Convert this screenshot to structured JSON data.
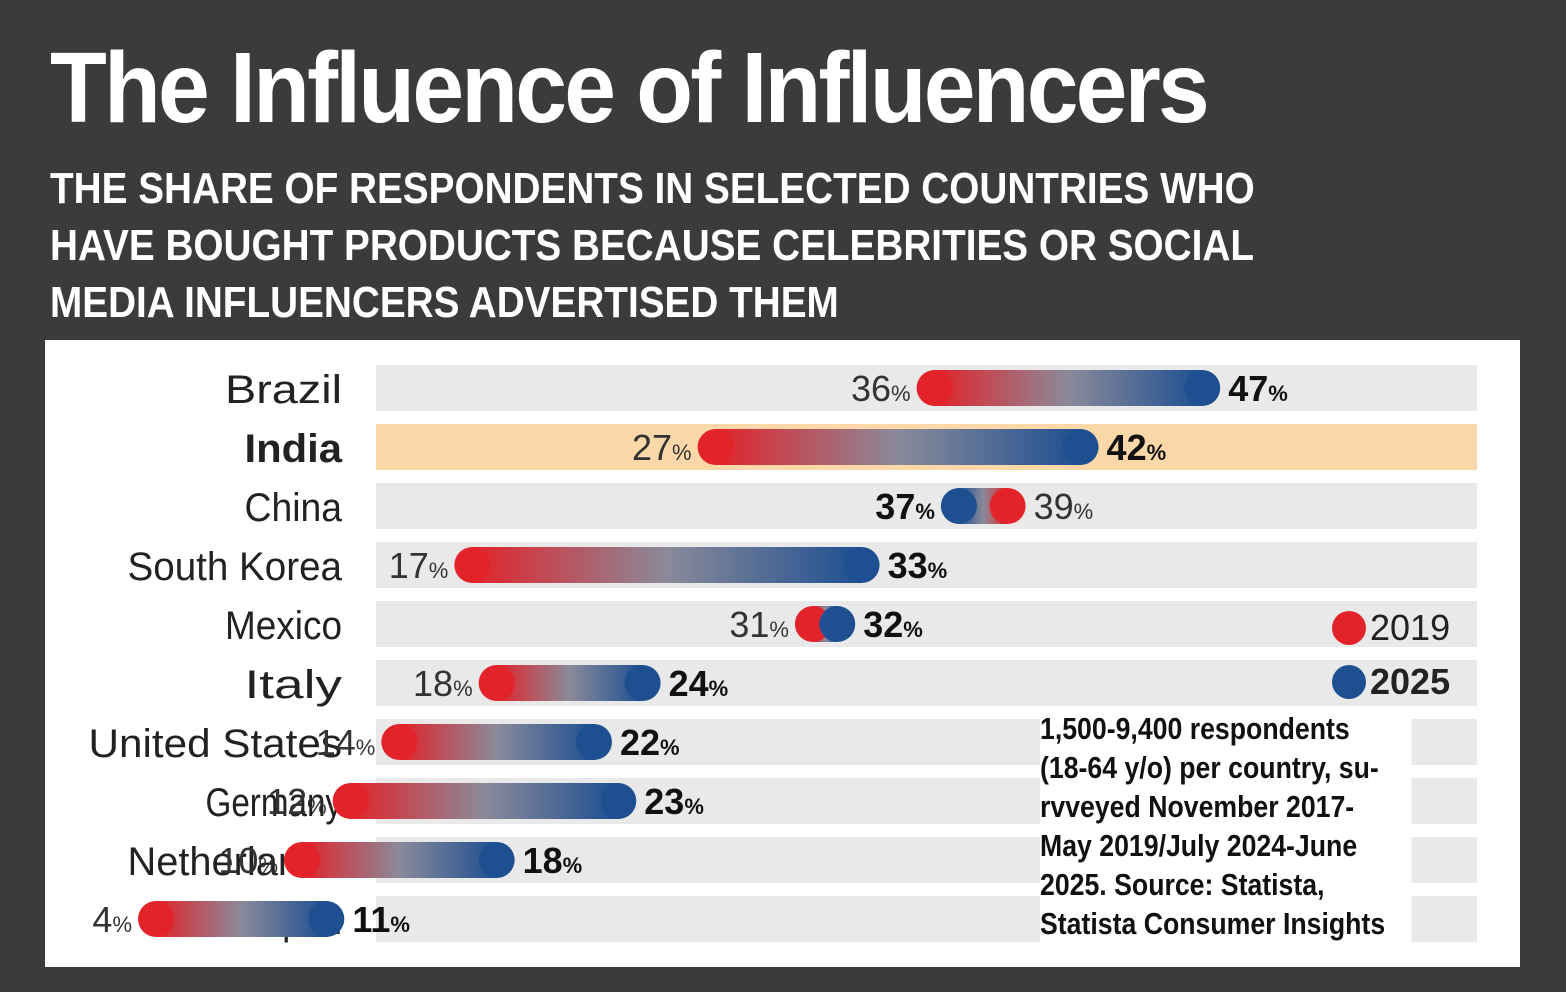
{
  "title": "The Influence of Influencers",
  "subtitle_lines": [
    "THE SHARE OF RESPONDENTS IN SELECTED COUNTRIES WHO",
    "HAVE BOUGHT PRODUCTS BECAUSE CELEBRITIES OR SOCIAL",
    "MEDIA INFLUENCERS ADVERTISED THEM"
  ],
  "note": "1,500-9,400 respondents\n(18-64 y/o) per country, su-\nrvveyed November 2017-\nMay 2019/July 2024-June\n2025. Source: Statista,\nStatista Consumer Insights",
  "legend": {
    "y2019": "2019",
    "y2025": "2025"
  },
  "colors": {
    "background": "#3b3b3b",
    "y2019": "#e2232a",
    "y2025": "#1d4f91",
    "row_bg": "#e9e9e9",
    "highlight_bg": "#fcd8a8"
  },
  "chart_data": {
    "type": "dumbbell",
    "unit": "%",
    "xlim": [
      0,
      50
    ],
    "series": [
      {
        "name": "2019",
        "values": [
          36,
          27,
          39,
          17,
          31,
          18,
          14,
          12,
          10,
          4
        ]
      },
      {
        "name": "2025",
        "values": [
          47,
          42,
          37,
          33,
          32,
          24,
          22,
          23,
          18,
          11
        ]
      }
    ],
    "categories": [
      "Brazil",
      "India",
      "China",
      "South Korea",
      "Mexico",
      "Italy",
      "United States",
      "Germany",
      "Netherlands",
      "Japan"
    ],
    "highlight": "India"
  }
}
